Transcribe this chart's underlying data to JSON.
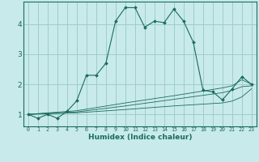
{
  "xlabel": "Humidex (Indice chaleur)",
  "ylabel": "",
  "bg_color": "#c8eaea",
  "grid_color": "#a0cccc",
  "line_color": "#1a6b5e",
  "xlim": [
    -0.5,
    23.5
  ],
  "ylim": [
    0.6,
    4.75
  ],
  "xticks": [
    0,
    1,
    2,
    3,
    4,
    5,
    6,
    7,
    8,
    9,
    10,
    11,
    12,
    13,
    14,
    15,
    16,
    17,
    18,
    19,
    20,
    21,
    22,
    23
  ],
  "yticks": [
    1,
    2,
    3,
    4
  ],
  "main_line": {
    "x": [
      0,
      1,
      2,
      3,
      4,
      5,
      6,
      7,
      8,
      9,
      10,
      11,
      12,
      13,
      14,
      15,
      16,
      17,
      18,
      19,
      20,
      21,
      22,
      23
    ],
    "y": [
      1.0,
      0.87,
      1.0,
      0.87,
      1.1,
      1.45,
      2.3,
      2.3,
      2.7,
      4.1,
      4.55,
      4.55,
      3.9,
      4.1,
      4.05,
      4.5,
      4.1,
      3.4,
      1.8,
      1.75,
      1.48,
      1.85,
      2.25,
      2.0
    ]
  },
  "lower_lines": [
    {
      "x": [
        0,
        5,
        10,
        15,
        20,
        21,
        22,
        23
      ],
      "y": [
        1.0,
        1.12,
        1.38,
        1.62,
        1.88,
        1.95,
        2.15,
        2.0
      ]
    },
    {
      "x": [
        0,
        5,
        10,
        15,
        20,
        21,
        22,
        23
      ],
      "y": [
        1.0,
        1.08,
        1.28,
        1.5,
        1.72,
        1.8,
        1.92,
        1.95
      ]
    },
    {
      "x": [
        0,
        5,
        10,
        15,
        20,
        21,
        22,
        23
      ],
      "y": [
        1.0,
        1.05,
        1.16,
        1.28,
        1.38,
        1.44,
        1.58,
        1.85
      ]
    }
  ]
}
